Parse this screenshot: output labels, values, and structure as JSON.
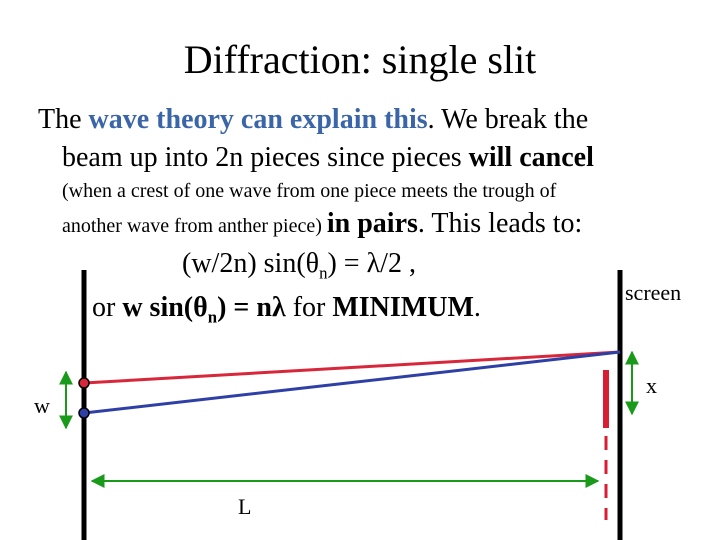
{
  "slide": {
    "title": "Diffraction:  single slit",
    "line1": {
      "pre": "The ",
      "highlight": "wave theory can explain this",
      "post": ".  We break the"
    },
    "line2": {
      "pre": "beam up into 2n pieces since pieces ",
      "bold": "will cancel"
    },
    "line3": "(when a crest of one wave from one piece meets the trough of",
    "line4": {
      "small": "another wave from anther piece) ",
      "bold": "in pairs",
      "post": ".  This leads to:"
    },
    "eq1": {
      "pre": "(w/2n) sin(",
      "theta": "θ",
      "sub": "n",
      "post": ") = λ/2 ,"
    },
    "eq2": {
      "pre": "or  ",
      "bold1": "w sin(",
      "theta": "θ",
      "sub": "n",
      "bold2": ") = nλ",
      "post": "  for ",
      "bold3": "MINIMUM",
      "end": "."
    }
  },
  "diagram": {
    "screen_label": "screen",
    "x_label": "x",
    "w_label": "w",
    "L_label": "L"
  },
  "colors": {
    "highlight": "#3a65a8",
    "red_ray": "#d8263a",
    "blue_ray": "#2e3fa6",
    "screen_mark": "#d81e33",
    "arrow": "#1a9a1a"
  }
}
